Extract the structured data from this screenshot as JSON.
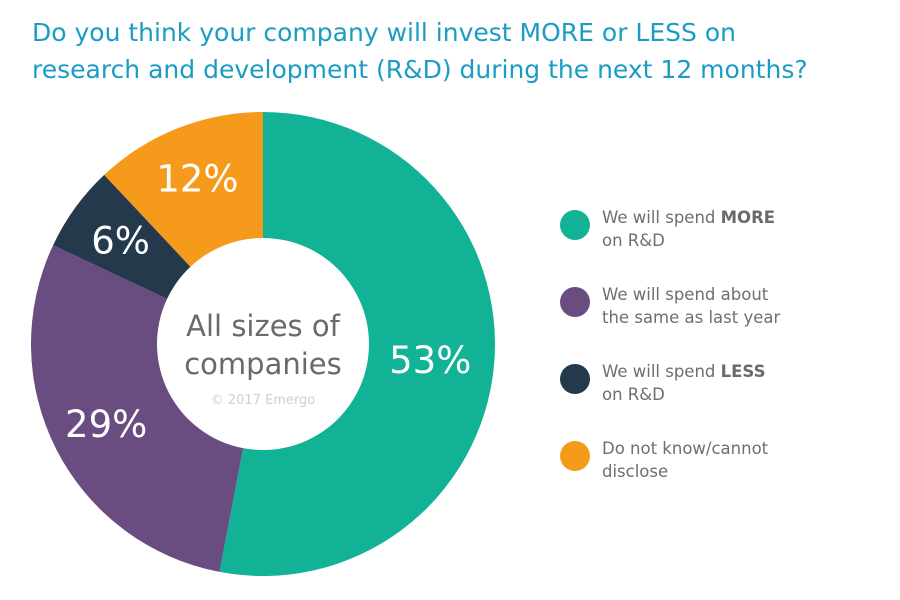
{
  "title": {
    "line1": "Do you think your company will invest MORE or LESS on",
    "line2": "research and development (R&D) during the next 12 months?"
  },
  "center": {
    "line1": "All sizes of",
    "line2": "companies",
    "watermark": "© 2017 Emergo"
  },
  "chart_data": {
    "type": "pie",
    "donut": true,
    "values": [
      53,
      29,
      6,
      12
    ],
    "labels": [
      "53%",
      "29%",
      "6%",
      "12%"
    ],
    "colors": [
      "#11b295",
      "#6a4d80",
      "#243a4c",
      "#f59a1b"
    ],
    "legend": [
      {
        "pre": "We will spend ",
        "bold": "MORE",
        "line2": "on R&D"
      },
      {
        "pre": "We will spend about",
        "bold": "",
        "line2": "the same as last year"
      },
      {
        "pre": "We will spend ",
        "bold": "LESS",
        "line2": "on R&D"
      },
      {
        "pre": "Do not know/cannot",
        "bold": "",
        "line2": "disclose"
      }
    ],
    "legend_position": "right"
  }
}
